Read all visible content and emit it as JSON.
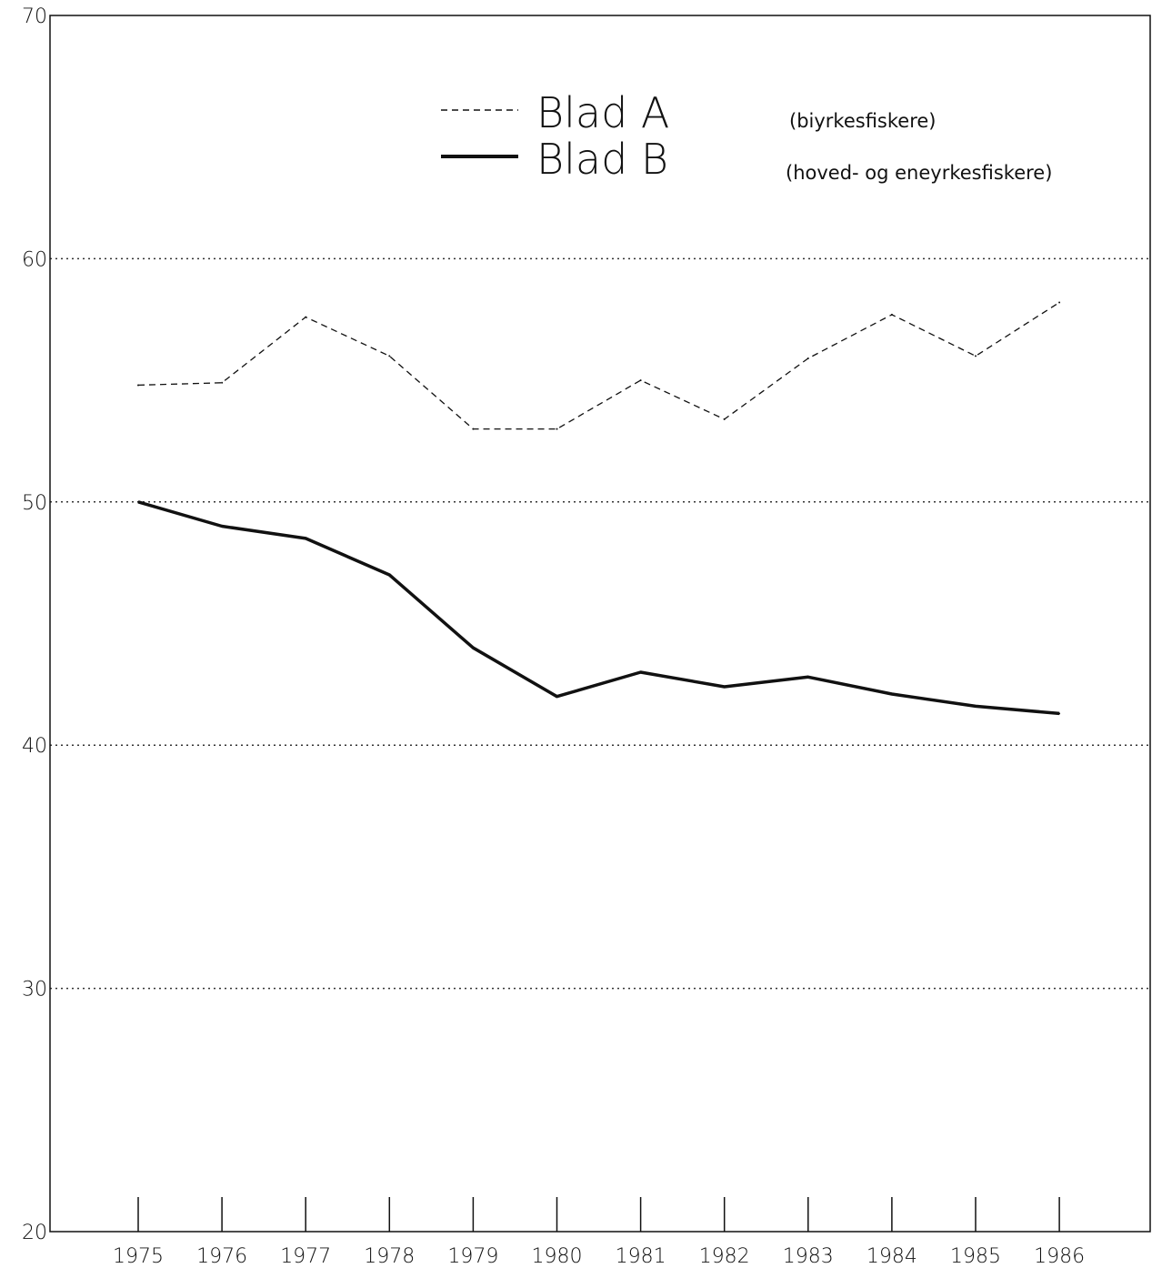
{
  "chart_data": {
    "type": "line",
    "x": [
      1975,
      1976,
      1977,
      1978,
      1979,
      1980,
      1981,
      1982,
      1983,
      1984,
      1985,
      1986
    ],
    "x_tick_labels": [
      "1975",
      "1976",
      "1977",
      "1978",
      "1979",
      "1980",
      "1981",
      "1982",
      "1983",
      "1984",
      "1985",
      "1986"
    ],
    "y_tick_labels": [
      "20",
      "30",
      "40",
      "50",
      "60",
      "70"
    ],
    "ylim": [
      20,
      70
    ],
    "grid_y": [
      30,
      40,
      50,
      60
    ],
    "series": [
      {
        "name": "Blad A",
        "note": "(biyrkesfiskere)",
        "style": "dashed",
        "values": [
          54.8,
          54.9,
          57.6,
          56.0,
          53.0,
          53.0,
          55.0,
          53.4,
          55.9,
          57.7,
          56.0,
          58.2
        ]
      },
      {
        "name": "Blad B",
        "note": "(hoved- og eneyrkesfiskere)",
        "style": "solid",
        "values": [
          50.0,
          49.0,
          48.5,
          47.0,
          44.0,
          42.0,
          43.0,
          42.4,
          42.8,
          42.1,
          41.6,
          41.3
        ]
      }
    ],
    "legend_position": "top-center",
    "colors": {
      "line": "#111111",
      "grid": "#333333"
    }
  }
}
